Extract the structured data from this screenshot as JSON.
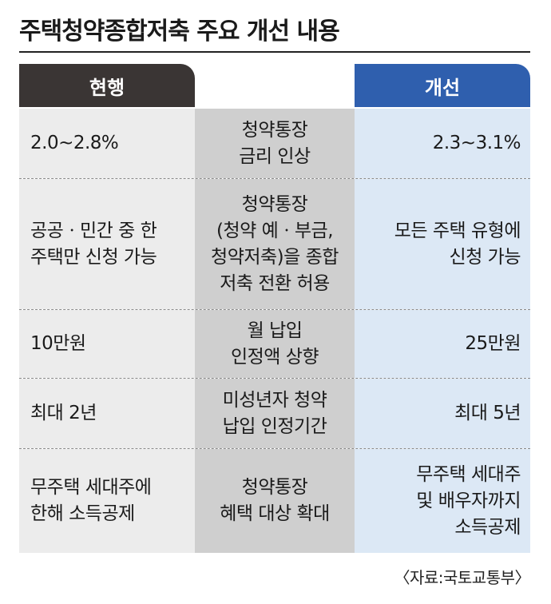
{
  "title": "주택청약종합저축 주요 개선 내용",
  "headers": {
    "current": "현행",
    "improved": "개선"
  },
  "rows": [
    {
      "current": "2.0~2.8%",
      "item": "청약통장\n금리 인상",
      "improved": "2.3~3.1%"
    },
    {
      "current": "공공ㆍ민간 중 한\n주택만 신청 가능",
      "item": "청약통장\n(청약 예ㆍ부금,\n청약저축)을 종합\n저축 전환 허용",
      "improved": "모든 주택 유형에\n신청 가능"
    },
    {
      "current": "10만원",
      "item": "월 납입\n인정액 상향",
      "improved": "25만원"
    },
    {
      "current": "최대 2년",
      "item": "미성년자 청약\n납입 인정기간",
      "improved": "최대 5년"
    },
    {
      "current": "무주택 세대주에\n한해 소득공제",
      "item": "청약통장\n혜택 대상 확대",
      "improved": "무주택 세대주\n및 배우자까지\n소득공제"
    }
  ],
  "source": "〈자료:국토교통부〉"
}
